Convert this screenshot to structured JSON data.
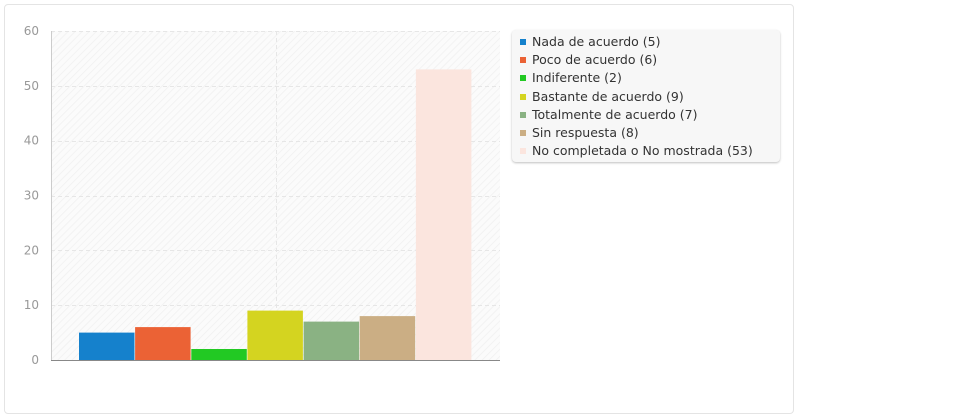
{
  "chart_data": {
    "type": "bar",
    "categories": [
      "Nada de acuerdo (5)",
      "Poco de acuerdo (6)",
      "Indiferente (2)",
      "Bastante de acuerdo (9)",
      "Totalmente de acuerdo (7)",
      "Sin respuesta (8)",
      "No completada o No mostrada (53)"
    ],
    "values": [
      5,
      6,
      2,
      9,
      7,
      8,
      53
    ],
    "colors": [
      "#1581cc",
      "#eb6235",
      "#22c923",
      "#d4d420",
      "#8ab283",
      "#cbae84",
      "#fbe5de"
    ],
    "ylim": [
      0,
      60
    ],
    "yticks": [
      "0",
      "10",
      "20",
      "30",
      "40",
      "50",
      "60"
    ],
    "grid": true,
    "legend_position": "right"
  }
}
